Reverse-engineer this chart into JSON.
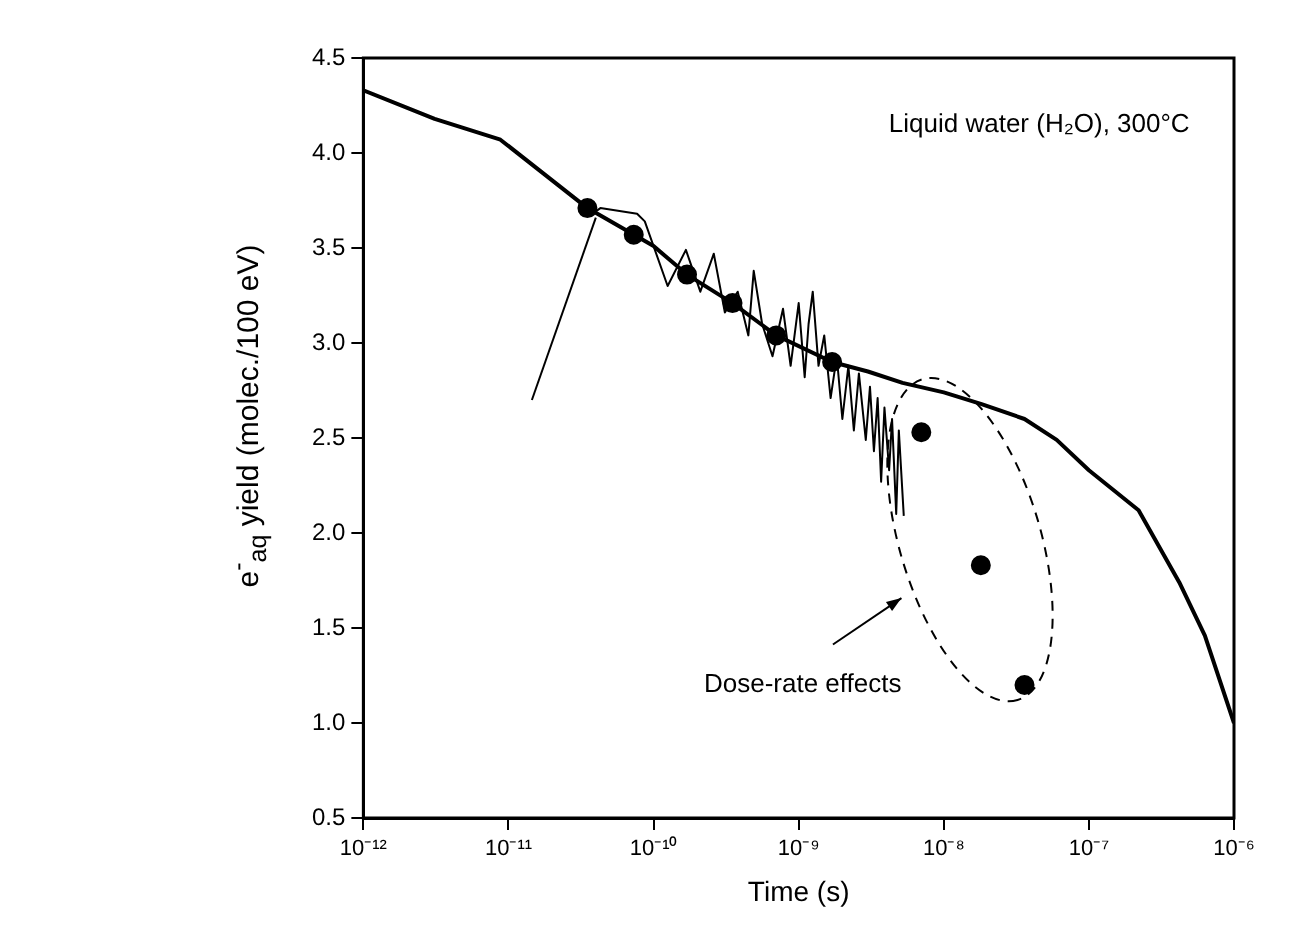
{
  "chart_data": {
    "type": "line",
    "xlabel": "Time (s)",
    "ylabel": "e$^{-}$$_{aq}$ yield (molec./100 eV)",
    "log": "x",
    "xlim": [
      1e-12,
      1e-06
    ],
    "ylim": [
      0.5,
      4.5
    ],
    "xticks": [
      {
        "value": 1e-12,
        "label": "10⁻¹²"
      },
      {
        "value": 1e-11,
        "label": "10⁻¹¹"
      },
      {
        "value": 1e-10,
        "label": "10⁻¹⁰"
      },
      {
        "value": 1e-09,
        "label": "10⁻⁹"
      },
      {
        "value": 1e-08,
        "label": "10⁻⁸"
      },
      {
        "value": 1e-07,
        "label": "10⁻⁷"
      },
      {
        "value": 1e-06,
        "label": "10⁻⁶"
      }
    ],
    "yticks": [
      0.5,
      {
        "value": 1,
        "label": "1.0"
      },
      1.5,
      {
        "value": 2,
        "label": "2.0"
      },
      2.5,
      {
        "value": 3,
        "label": "3.0"
      },
      3.5,
      {
        "value": 4,
        "label": "4.0"
      },
      4.5
    ],
    "grid": false,
    "legend": false,
    "series": [
      {
        "color": "#000000",
        "marker": "none",
        "x": [
          1e-12,
          3.1e-12,
          8.8e-12,
          3.5e-11,
          1e-10,
          1.7e-10,
          3.5e-10,
          7e-10,
          1.7e-09,
          3e-09,
          5.2e-09,
          1e-08,
          1.8e-08,
          3.6e-08,
          6e-08,
          1e-07,
          2.2e-07,
          4.2e-07,
          6.3e-07,
          1e-06
        ],
        "values": [
          4.33,
          4.18,
          4.07,
          3.71,
          3.51,
          3.36,
          3.21,
          3.04,
          2.9,
          2.85,
          2.79,
          2.74,
          2.68,
          2.6,
          2.49,
          2.33,
          2.12,
          1.74,
          1.46,
          1.0
        ]
      },
      {
        "color": "#000000",
        "marker": "none",
        "x": [
          3.8e-11,
          4.3e-11,
          7.7e-11,
          8.7e-11,
          1.25e-10,
          1.67e-10,
          2.1e-10,
          2.6e-10,
          3.1e-10,
          3.8e-10,
          4.5e-10,
          4.9e-10,
          5.6e-10,
          6.6e-10,
          7.8e-10,
          8.8e-10,
          1e-09,
          1.1e-09,
          1.17e-09,
          1.25e-09,
          1.37e-09,
          1.5e-09,
          1.66e-09,
          1.83e-09,
          2e-09,
          2.2e-09,
          2.4e-09,
          2.6e-09,
          2.9e-09,
          3.1e-09,
          3.3e-09,
          3.5e-09,
          3.7e-09,
          3.9e-09,
          4.2e-09,
          4.4e-09,
          4.7e-09,
          4.9e-09,
          5.3e-09
        ],
        "values": [
          3.68,
          3.71,
          3.68,
          3.64,
          3.3,
          3.49,
          3.27,
          3.47,
          3.16,
          3.27,
          3.04,
          3.38,
          3.1,
          2.93,
          3.18,
          2.88,
          3.21,
          2.82,
          3.1,
          3.27,
          2.88,
          3.04,
          2.71,
          2.93,
          2.6,
          2.88,
          2.54,
          2.84,
          2.49,
          2.77,
          2.43,
          2.71,
          2.27,
          2.66,
          2.33,
          2.6,
          2.1,
          2.54,
          2.09
        ]
      },
      {
        "color": "#000000",
        "marker": "none",
        "x": [
          1.45e-11,
          4e-11
        ],
        "values": [
          2.7,
          3.66
        ]
      },
      {
        "type": "scatter",
        "color": "#000000",
        "marker": "circle",
        "x": [
          3.5e-11,
          7.3e-11,
          1.7e-10,
          3.5e-10,
          7e-10,
          1.7e-09,
          7e-09,
          1.8e-08,
          3.6e-08
        ],
        "values": [
          3.71,
          3.57,
          3.36,
          3.21,
          3.04,
          2.9,
          2.53,
          1.83,
          1.2
        ]
      }
    ],
    "annotations": [
      "Liquid water (H₂O), 300°C",
      "Dose-rate effects"
    ]
  }
}
